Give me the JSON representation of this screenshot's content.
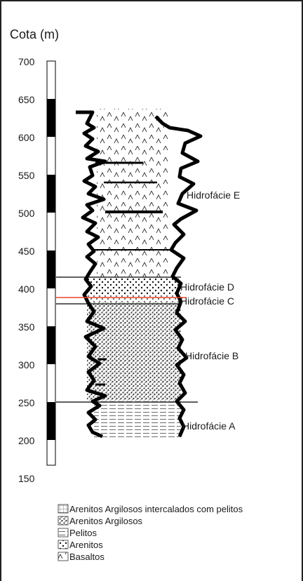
{
  "diagram": {
    "axis_title": "Cota (m)",
    "elevation_ticks": [
      "700",
      "650",
      "600",
      "550",
      "500",
      "450",
      "400",
      "350",
      "300",
      "250",
      "200",
      "150"
    ],
    "units": [
      {
        "name": "Hidrofácie E",
        "lithology": "Basaltos",
        "top_m": 630,
        "base_m": 415
      },
      {
        "name": "Hidrofácie D",
        "lithology": "Arenitos",
        "top_m": 415,
        "base_m": 392
      },
      {
        "name": "Hidrofácie C",
        "lithology": "Arenitos",
        "top_m": 392,
        "base_m": 385
      },
      {
        "name": "Hidrofácie B",
        "lithology": "Arenitos Argilosos",
        "top_m": 385,
        "base_m": 258
      },
      {
        "name": "Hidrofácie A",
        "lithology": "Arenitos Argilosos intercalados com pelitos",
        "top_m": 258,
        "base_m": 212
      }
    ],
    "boundary_color": "#e8442a",
    "legend": [
      {
        "pattern": "grid",
        "label": "Arenitos Argilosos intercalados com pelitos"
      },
      {
        "pattern": "dense-dots",
        "label": "Arenitos Argilosos"
      },
      {
        "pattern": "lines",
        "label": "Pelitos"
      },
      {
        "pattern": "dots",
        "label": "Arenitos"
      },
      {
        "pattern": "basalt",
        "label": "Basaltos"
      }
    ]
  }
}
